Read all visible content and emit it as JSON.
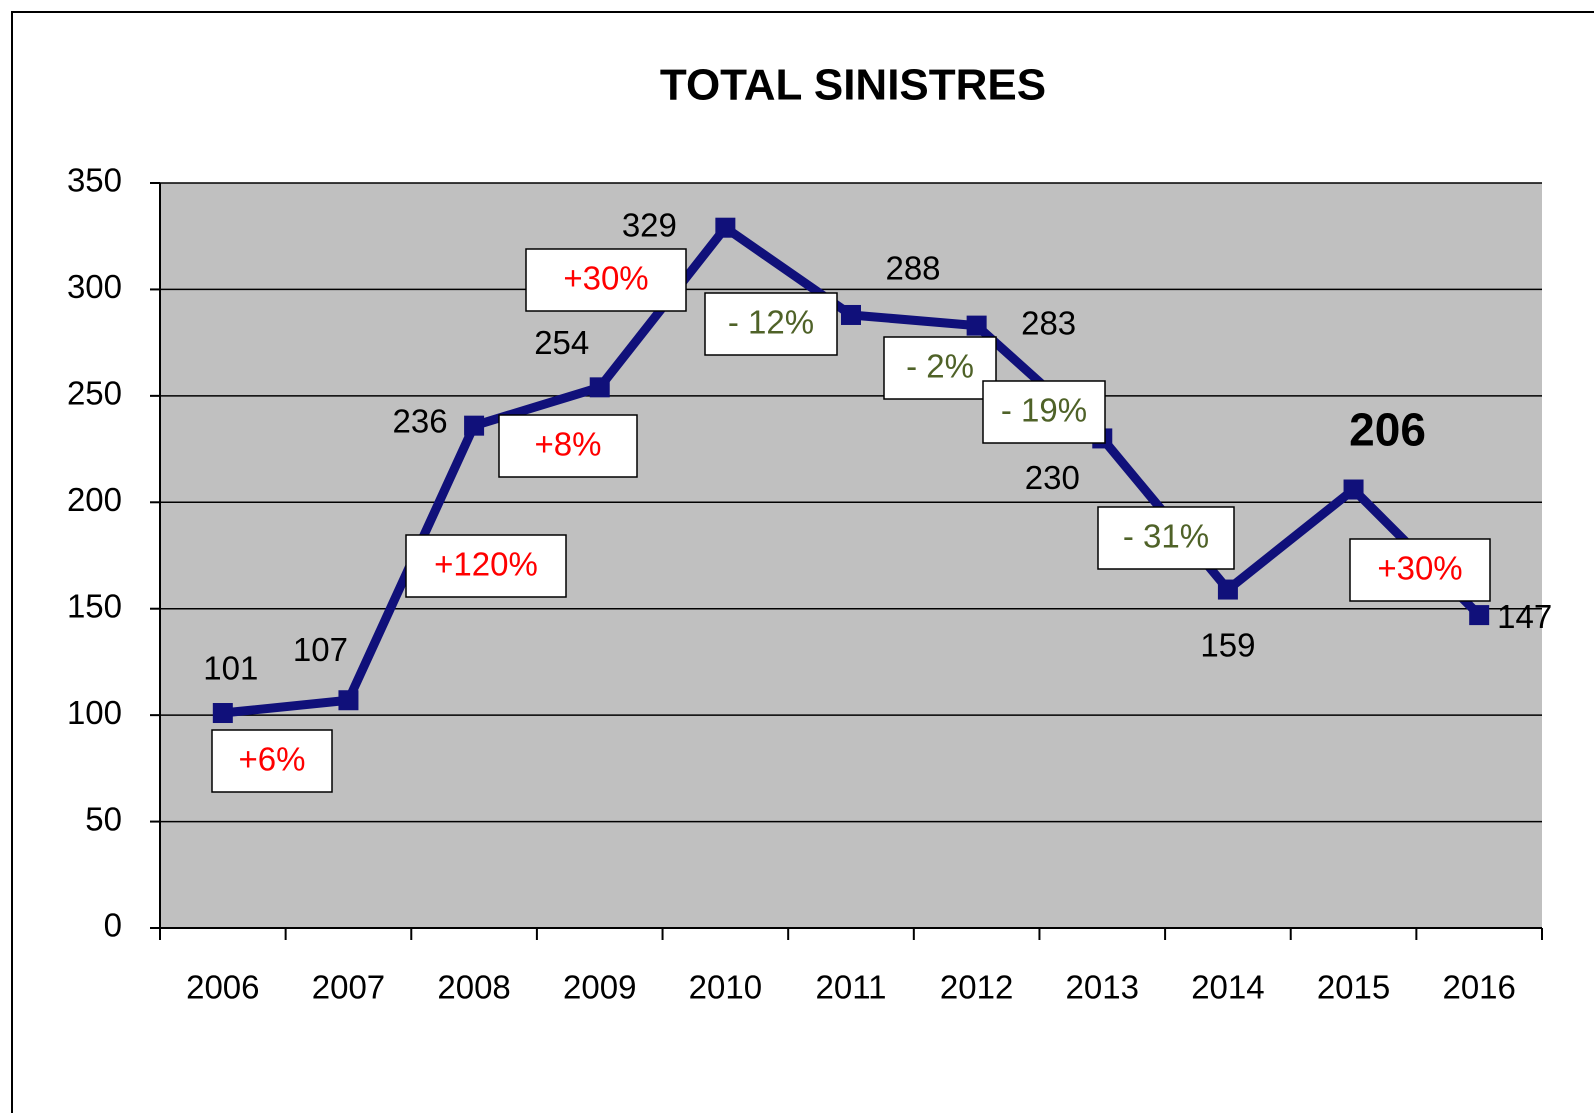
{
  "chart_data": {
    "type": "line",
    "title": "TOTAL SINISTRES",
    "categories": [
      "2006",
      "2007",
      "2008",
      "2009",
      "2010",
      "2011",
      "2012",
      "2013",
      "2014",
      "2015",
      "2016"
    ],
    "series": [
      {
        "name": "Total sinistres",
        "color": "#10107a",
        "values": [
          101,
          107,
          236,
          254,
          329,
          288,
          283,
          230,
          159,
          206,
          147
        ]
      }
    ],
    "ylim": [
      0,
      350
    ],
    "yticks": [
      0,
      50,
      100,
      150,
      200,
      250,
      300,
      350
    ],
    "grid": true,
    "legend": false,
    "plot_background": "#c0c0c0",
    "annotations": [
      {
        "text": "+6%",
        "color": "#ff0000"
      },
      {
        "text": "+120%",
        "color": "#ff0000"
      },
      {
        "text": "+8%",
        "color": "#ff0000"
      },
      {
        "text": "+30%",
        "color": "#ff0000"
      },
      {
        "text": "- 12%",
        "color": "#4f6228"
      },
      {
        "text": "- 2%",
        "color": "#4f6228"
      },
      {
        "text": "- 19%",
        "color": "#4f6228"
      },
      {
        "text": "- 31%",
        "color": "#4f6228"
      },
      {
        "text": "+30%",
        "color": "#ff0000"
      }
    ]
  }
}
